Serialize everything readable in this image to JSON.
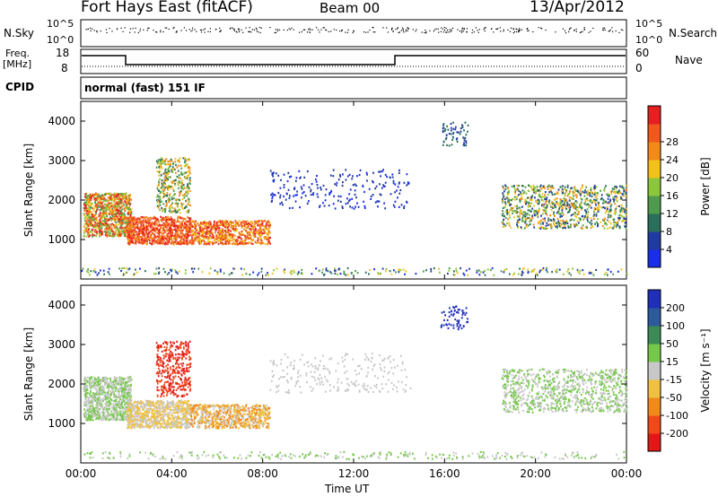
{
  "header": {
    "radar": "Fort Hays East (fitACF)",
    "beam": "Beam 00",
    "date": "13/Apr/2012"
  },
  "top_panels": {
    "nsky_label": "N.Sky",
    "nsearch_label": "N.Search",
    "noise_ticks": [
      "10^5",
      "10^0"
    ],
    "freq_label": "Freq.",
    "freq_unit": "[MHz]",
    "freq_ticks": [
      "18",
      "8"
    ],
    "nave_label": "Nave",
    "nave_ticks": [
      "60",
      "0"
    ],
    "cpid_label": "CPID",
    "cpid_value": "normal (fast) 151 IF"
  },
  "chart_data": [
    {
      "type": "heatmap",
      "name": "Power",
      "ylabel": "Slant Range [km]",
      "yticks": [
        "1000",
        "2000",
        "3000",
        "4000"
      ],
      "ylim": [
        0,
        4500
      ],
      "colorbar_label": "Power [dB]",
      "colorbar_ticks": [
        "4",
        "8",
        "12",
        "16",
        "20",
        "24",
        "28"
      ],
      "colorbar_colors": [
        "#1a2ee8",
        "#213aa0",
        "#2a6f5a",
        "#4f9a4c",
        "#8cc63a",
        "#f2c21a",
        "#f28a1a",
        "#f0581e",
        "#e62020"
      ]
    },
    {
      "type": "heatmap",
      "name": "Velocity",
      "ylabel": "Slant Range [km]",
      "yticks": [
        "1000",
        "2000",
        "3000",
        "4000"
      ],
      "ylim": [
        0,
        4500
      ],
      "colorbar_label": "Velocity [m s⁻¹]",
      "colorbar_ticks": [
        "200",
        "100",
        "50",
        "15",
        "-15",
        "-50",
        "-100",
        "-200"
      ],
      "colorbar_colors": [
        "#1f2fb8",
        "#2c5a9a",
        "#3c8a55",
        "#76c84a",
        "#c8c8c8",
        "#f0c040",
        "#f08a1a",
        "#f04a1a",
        "#e01818"
      ]
    }
  ],
  "xaxis": {
    "label": "Time UT",
    "ticks": [
      "00:00",
      "04:00",
      "08:00",
      "12:00",
      "16:00",
      "20:00",
      "00:00"
    ]
  }
}
